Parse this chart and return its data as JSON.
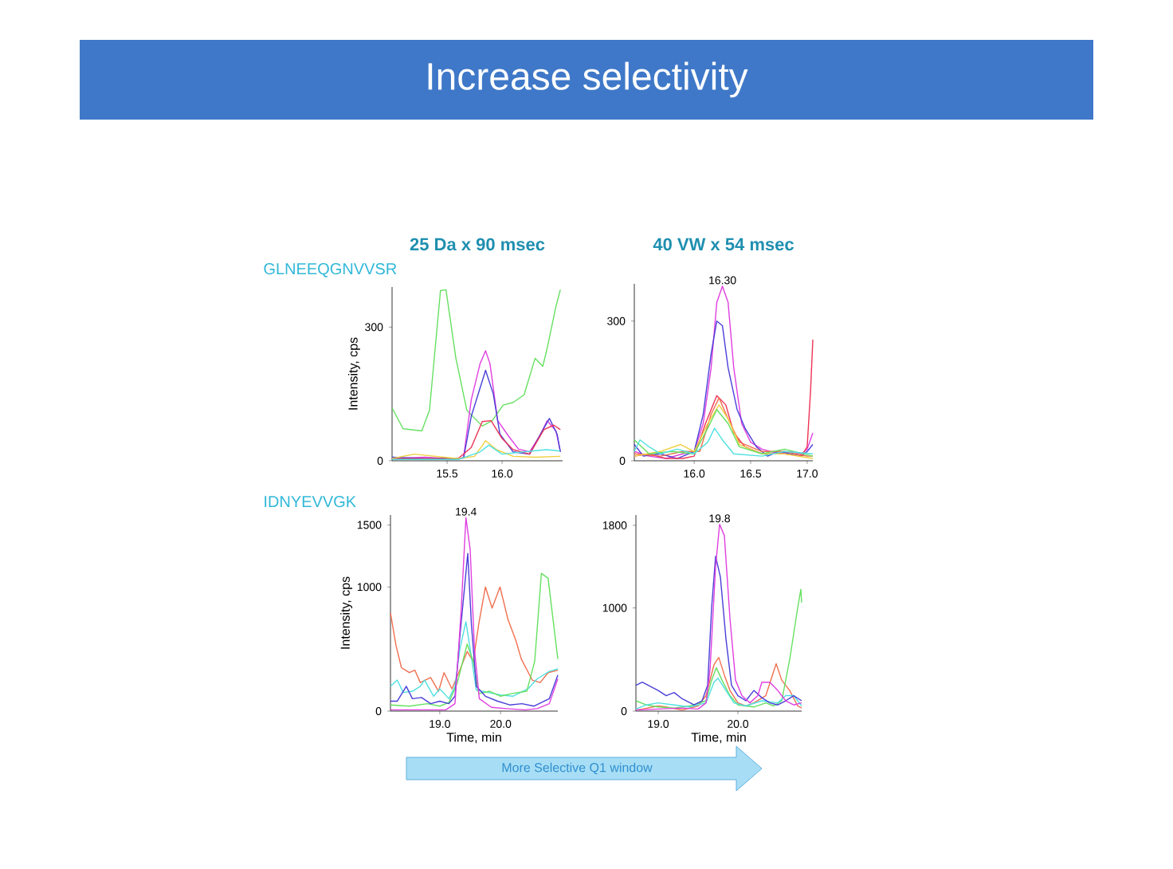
{
  "chart_data": [
    {
      "type": "other",
      "title": "Increase selectivity",
      "annotations": [
        "More Selective Q1 window"
      ]
    },
    {
      "type": "line",
      "title": "25 Da x 90 msec",
      "subtitle": "GLNEEQGNVVSR",
      "ylabel": "Intensity, cps",
      "xlim": [
        15.0,
        16.55
      ],
      "ylim": [
        0,
        390
      ],
      "xticks": [
        15.5,
        {
          "value": 16.0,
          "label": "16.0"
        }
      ],
      "yticks": [
        0,
        300
      ],
      "series": [
        {
          "color": "#66e060",
          "x": [
            15.0,
            15.1,
            15.27,
            15.34,
            15.44,
            15.49,
            15.58,
            15.68,
            15.82,
            15.91,
            16.01,
            16.1,
            16.2,
            16.3,
            16.37,
            16.41,
            16.49,
            16.53
          ],
          "values": [
            119,
            72,
            67,
            113,
            382,
            384,
            230,
            113,
            78,
            90,
            125,
            131,
            148,
            230,
            212,
            253,
            347,
            384
          ]
        },
        {
          "color": "#e040e0",
          "x": [
            15.0,
            15.3,
            15.6,
            15.65,
            15.72,
            15.8,
            15.85,
            15.89,
            15.96,
            16.06,
            16.15,
            16.25,
            16.34,
            16.41,
            16.49,
            16.53
          ],
          "values": [
            5,
            8,
            3,
            8,
            137,
            218,
            247,
            218,
            90,
            55,
            26,
            20,
            55,
            90,
            67,
            20
          ]
        },
        {
          "color": "#4a3fd8",
          "x": [
            15.0,
            15.3,
            15.65,
            15.72,
            15.85,
            15.92,
            15.98,
            16.1,
            16.25,
            16.35,
            16.43,
            16.5,
            16.53
          ],
          "values": [
            8,
            5,
            6,
            100,
            203,
            150,
            60,
            20,
            15,
            60,
            95,
            60,
            20
          ]
        },
        {
          "color": "#ee3355",
          "x": [
            15.0,
            15.6,
            15.72,
            15.82,
            15.9,
            16.0,
            16.1,
            16.25,
            16.38,
            16.47,
            16.53
          ],
          "values": [
            5,
            5,
            30,
            88,
            90,
            50,
            25,
            15,
            70,
            80,
            70
          ]
        },
        {
          "color": "#f0d040",
          "x": [
            15.0,
            15.2,
            15.6,
            15.75,
            15.85,
            15.95,
            16.1,
            16.3,
            16.53
          ],
          "values": [
            5,
            15,
            5,
            10,
            45,
            25,
            10,
            8,
            10
          ]
        },
        {
          "color": "#50e0e0",
          "x": [
            15.0,
            15.6,
            15.8,
            15.88,
            16.0,
            16.2,
            16.4,
            16.53
          ],
          "values": [
            3,
            3,
            20,
            35,
            15,
            20,
            25,
            22
          ]
        }
      ]
    },
    {
      "type": "line",
      "title": "40 VW x 54 msec",
      "xlim": [
        15.47,
        17.05
      ],
      "ylim": [
        0,
        380
      ],
      "xticks": [
        {
          "value": 16.0,
          "label": "16.0"
        },
        16.5,
        {
          "value": 17.0,
          "label": "17.0"
        }
      ],
      "yticks": [
        0,
        300
      ],
      "annotations": [
        "16.30"
      ],
      "series": [
        {
          "color": "#e040e0",
          "x": [
            15.47,
            15.6,
            15.75,
            15.9,
            16.0,
            16.08,
            16.15,
            16.2,
            16.25,
            16.3,
            16.35,
            16.42,
            16.5,
            16.6,
            16.75,
            16.85,
            16.95,
            17.0,
            17.05
          ],
          "values": [
            20,
            10,
            5,
            15,
            20,
            80,
            200,
            340,
            375,
            340,
            200,
            80,
            40,
            25,
            15,
            20,
            15,
            25,
            60
          ]
        },
        {
          "color": "#4a3fd8",
          "x": [
            15.47,
            15.55,
            15.7,
            15.85,
            16.0,
            16.08,
            16.15,
            16.2,
            16.25,
            16.3,
            16.38,
            16.45,
            16.55,
            16.65,
            16.75,
            16.85,
            16.95,
            17.0,
            17.05
          ],
          "values": [
            35,
            10,
            15,
            5,
            20,
            100,
            230,
            300,
            290,
            200,
            110,
            70,
            30,
            10,
            20,
            15,
            10,
            20,
            35
          ]
        },
        {
          "color": "#ee3355",
          "x": [
            15.47,
            15.6,
            15.75,
            15.9,
            16.0,
            16.1,
            16.2,
            16.28,
            16.35,
            16.45,
            16.6,
            16.8,
            16.95,
            17.0,
            17.03,
            17.05
          ],
          "values": [
            10,
            15,
            5,
            5,
            10,
            80,
            140,
            120,
            60,
            30,
            15,
            15,
            10,
            30,
            150,
            260
          ]
        },
        {
          "color": "#f07050",
          "x": [
            15.47,
            15.7,
            15.9,
            16.05,
            16.15,
            16.22,
            16.3,
            16.4,
            16.6,
            16.8,
            17.0,
            17.05
          ],
          "values": [
            15,
            10,
            20,
            20,
            100,
            135,
            90,
            40,
            20,
            20,
            10,
            10
          ]
        },
        {
          "color": "#f0d040",
          "x": [
            15.47,
            15.7,
            15.88,
            16.0,
            16.12,
            16.22,
            16.3,
            16.4,
            16.6,
            16.8,
            17.05
          ],
          "values": [
            10,
            20,
            35,
            20,
            80,
            120,
            90,
            35,
            15,
            15,
            5
          ]
        },
        {
          "color": "#66e060",
          "x": [
            15.47,
            15.6,
            15.8,
            16.0,
            16.12,
            16.2,
            16.3,
            16.4,
            16.6,
            16.8,
            17.05
          ],
          "values": [
            45,
            15,
            20,
            15,
            70,
            110,
            80,
            30,
            15,
            25,
            10
          ]
        },
        {
          "color": "#50e0e0",
          "x": [
            15.47,
            15.52,
            15.6,
            15.7,
            15.85,
            16.0,
            16.12,
            16.18,
            16.25,
            16.35,
            16.6,
            16.8,
            17.05
          ],
          "values": [
            20,
            45,
            30,
            15,
            25,
            15,
            40,
            70,
            45,
            15,
            10,
            20,
            15
          ]
        }
      ]
    },
    {
      "type": "line",
      "subtitle": "IDNYEVVGK",
      "xlabel": "Time, min",
      "ylabel": "Intensity, cps",
      "xlim": [
        18.19,
        20.94
      ],
      "ylim": [
        0,
        1580
      ],
      "xticks": [
        {
          "value": 19.0,
          "label": "19.0"
        },
        {
          "value": 20.0,
          "label": "20.0"
        }
      ],
      "yticks": [
        0,
        1000,
        1500
      ],
      "annotations": [
        "19.4"
      ],
      "series": [
        {
          "color": "#f07050",
          "x": [
            18.19,
            18.28,
            18.37,
            18.5,
            18.59,
            18.68,
            18.85,
            18.98,
            19.07,
            19.2,
            19.33,
            19.45,
            19.55,
            19.64,
            19.75,
            19.86,
            19.99,
            20.12,
            20.25,
            20.34,
            20.52,
            20.65,
            20.78,
            20.94
          ],
          "values": [
            790,
            530,
            350,
            310,
            330,
            230,
            270,
            160,
            310,
            180,
            330,
            480,
            400,
            700,
            1000,
            830,
            1000,
            740,
            570,
            420,
            250,
            230,
            310,
            330
          ]
        },
        {
          "color": "#50e0e0",
          "x": [
            18.19,
            18.3,
            18.4,
            18.55,
            18.68,
            18.75,
            18.9,
            19.0,
            19.15,
            19.25,
            19.33,
            19.43,
            19.5,
            19.6,
            19.8,
            20.0,
            20.2,
            20.45,
            20.6,
            20.8,
            20.94
          ],
          "values": [
            200,
            250,
            150,
            160,
            200,
            250,
            120,
            180,
            100,
            200,
            500,
            720,
            500,
            170,
            150,
            130,
            120,
            180,
            260,
            320,
            340
          ]
        },
        {
          "color": "#66e060",
          "x": [
            18.19,
            18.5,
            18.8,
            19.0,
            19.15,
            19.29,
            19.45,
            19.55,
            19.64,
            19.82,
            20.0,
            20.17,
            20.43,
            20.56,
            20.67,
            20.78,
            20.94
          ],
          "values": [
            50,
            40,
            60,
            40,
            70,
            230,
            540,
            400,
            140,
            160,
            120,
            140,
            160,
            400,
            1110,
            1070,
            420
          ]
        },
        {
          "color": "#4a3fd8",
          "x": [
            18.19,
            18.3,
            18.45,
            18.55,
            18.7,
            18.85,
            19.0,
            19.15,
            19.25,
            19.33,
            19.46,
            19.52,
            19.6,
            19.75,
            19.95,
            20.15,
            20.35,
            20.55,
            20.8,
            20.94
          ],
          "values": [
            80,
            80,
            200,
            100,
            110,
            60,
            80,
            60,
            120,
            600,
            1270,
            700,
            200,
            120,
            80,
            50,
            60,
            40,
            100,
            290
          ]
        },
        {
          "color": "#e040e0",
          "x": [
            18.19,
            18.5,
            18.8,
            19.1,
            19.25,
            19.35,
            19.43,
            19.5,
            19.57,
            19.65,
            19.85,
            20.1,
            20.4,
            20.6,
            20.8,
            20.94
          ],
          "values": [
            10,
            10,
            10,
            10,
            60,
            800,
            1560,
            1300,
            500,
            100,
            30,
            20,
            10,
            20,
            60,
            260
          ]
        }
      ]
    },
    {
      "type": "line",
      "xlabel": "Time, min",
      "xlim": [
        18.72,
        20.8
      ],
      "ylim": [
        0,
        1900
      ],
      "xticks": [
        {
          "value": 19.0,
          "label": "19.0"
        },
        {
          "value": 20.0,
          "label": "20.0"
        }
      ],
      "yticks": [
        0,
        1000,
        1800
      ],
      "annotations": [
        "19.8"
      ],
      "series": [
        {
          "color": "#f07050",
          "x": [
            18.72,
            18.8,
            19.0,
            19.1,
            19.3,
            19.5,
            19.6,
            19.7,
            19.76,
            19.83,
            19.9,
            20.0,
            20.1,
            20.2,
            20.35,
            20.48,
            20.55,
            20.65,
            20.75,
            20.8
          ],
          "values": [
            10,
            20,
            50,
            40,
            10,
            50,
            150,
            450,
            520,
            350,
            200,
            80,
            50,
            80,
            150,
            460,
            300,
            200,
            50,
            30
          ]
        },
        {
          "color": "#66e060",
          "x": [
            18.72,
            18.85,
            19.0,
            19.2,
            19.4,
            19.6,
            19.67,
            19.73,
            19.8,
            19.9,
            20.0,
            20.2,
            20.35,
            20.45,
            20.55,
            20.65,
            20.75,
            20.79,
            20.8
          ],
          "values": [
            100,
            60,
            40,
            30,
            50,
            100,
            300,
            420,
            300,
            150,
            60,
            40,
            80,
            50,
            100,
            500,
            1000,
            1180,
            1050
          ]
        },
        {
          "color": "#50e0e0",
          "x": [
            18.72,
            18.85,
            19.0,
            19.2,
            19.4,
            19.6,
            19.7,
            19.75,
            19.85,
            19.95,
            20.1,
            20.3,
            20.5,
            20.6,
            20.7,
            20.8
          ],
          "values": [
            20,
            60,
            80,
            60,
            40,
            80,
            280,
            320,
            200,
            80,
            50,
            100,
            80,
            150,
            150,
            50
          ]
        },
        {
          "color": "#4a3fd8",
          "x": [
            18.72,
            18.8,
            18.9,
            19.0,
            19.1,
            19.2,
            19.3,
            19.45,
            19.55,
            19.62,
            19.67,
            19.72,
            19.78,
            19.85,
            19.92,
            20.0,
            20.1,
            20.2,
            20.3,
            20.4,
            20.5,
            20.6,
            20.7,
            20.8
          ],
          "values": [
            250,
            280,
            240,
            200,
            150,
            180,
            120,
            60,
            100,
            250,
            1000,
            1500,
            1300,
            700,
            250,
            150,
            100,
            200,
            130,
            80,
            60,
            100,
            150,
            100
          ]
        },
        {
          "color": "#e040e0",
          "x": [
            18.72,
            19.0,
            19.3,
            19.5,
            19.6,
            19.65,
            19.72,
            19.77,
            19.83,
            19.9,
            19.97,
            20.05,
            20.15,
            20.25,
            20.3,
            20.4,
            20.5,
            20.6,
            20.7,
            20.8
          ],
          "values": [
            10,
            20,
            30,
            20,
            80,
            400,
            1400,
            1810,
            1700,
            900,
            300,
            150,
            80,
            150,
            280,
            280,
            200,
            100,
            60,
            80
          ]
        }
      ]
    }
  ]
}
